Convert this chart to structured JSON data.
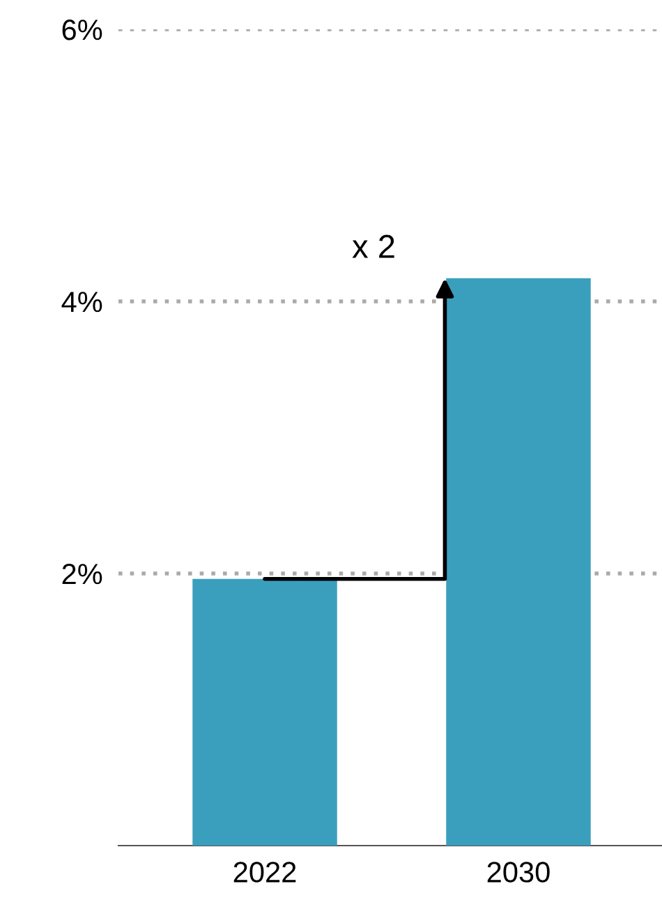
{
  "chart_data": {
    "type": "bar",
    "categories": [
      "2022",
      "2030"
    ],
    "values": [
      1.96,
      4.17
    ],
    "color": "#3a9fbd",
    "ylim": [
      0,
      6
    ],
    "yticks": [
      {
        "value": 2,
        "label": "2%"
      },
      {
        "value": 4,
        "label": "4%"
      },
      {
        "value": 6,
        "label": "6%"
      }
    ],
    "grid": "y",
    "annotations": [
      "x 2"
    ]
  }
}
